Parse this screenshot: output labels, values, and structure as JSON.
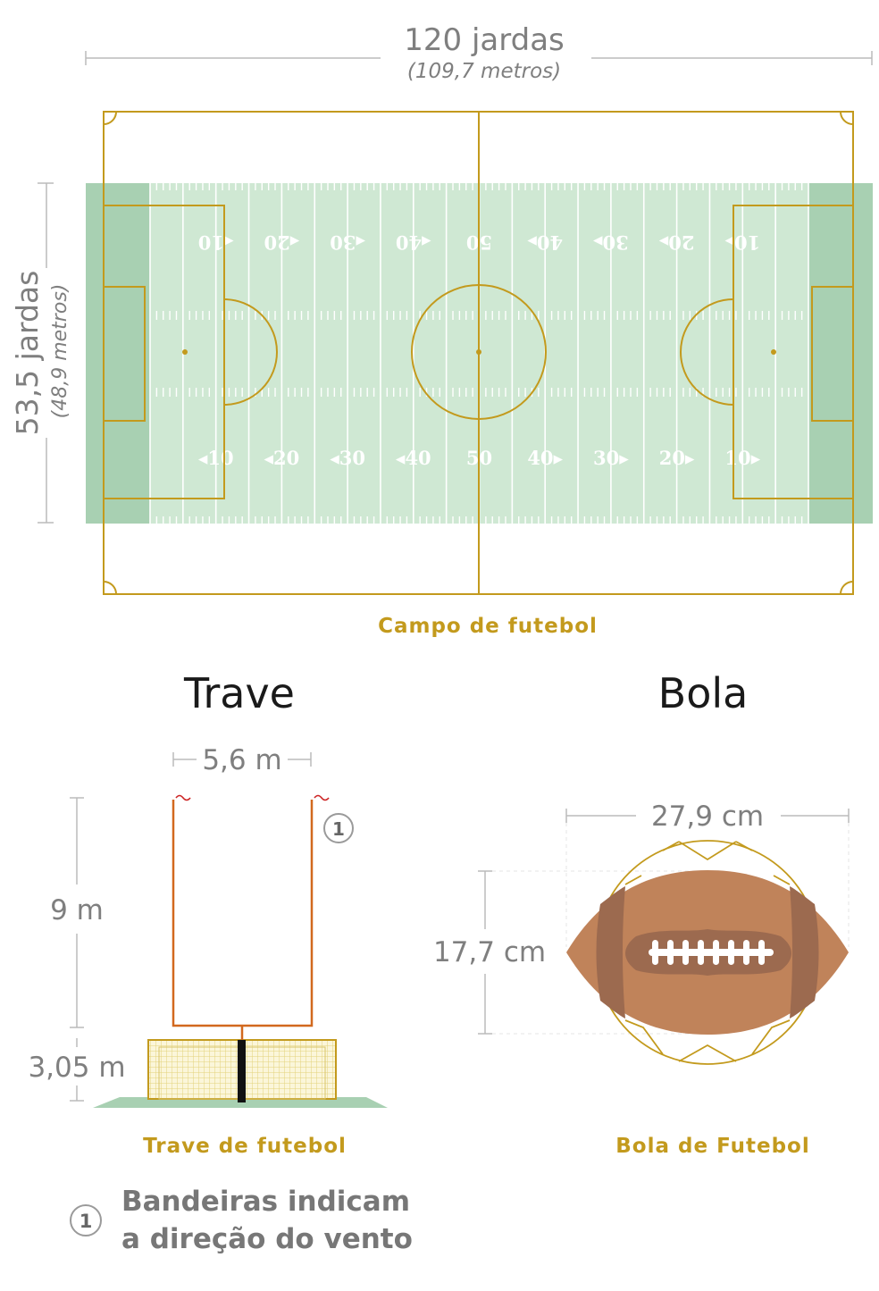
{
  "field": {
    "length_label": "120 jardas",
    "length_metric": "(109,7 metros)",
    "width_label": "53,5 jardas",
    "width_metric": "(48,9 metros)",
    "caption": "Campo de futebol",
    "yard_numbers_bottom": [
      "◂10",
      "◂20",
      "◂30",
      "◂40",
      "50",
      "40▸",
      "30▸",
      "20▸",
      "10▸"
    ],
    "yard_numbers_top": [
      "◂10",
      "◂20",
      "◂30",
      "◂40",
      "50",
      "40▸",
      "30▸",
      "20▸",
      "10▸"
    ]
  },
  "trave": {
    "title": "Trave",
    "width_label": "5,6 m",
    "height_label": "9 m",
    "base_label": "3,05 m",
    "caption": "Trave de futebol",
    "marker": "1"
  },
  "bola": {
    "title": "Bola",
    "length_label": "27,9 cm",
    "height_label": "17,7 cm",
    "caption": "Bola de Futebol"
  },
  "note": {
    "marker": "1",
    "line1": "Bandeiras indicam",
    "line2": "a direção do vento"
  },
  "colors": {
    "grass": "#cfe8d3",
    "endzone": "#a8d0b2",
    "gold_line": "#c39a1d",
    "goalpost": "#d2691e",
    "ball_brown": "#c0835a",
    "ball_dark": "#9c6a4f"
  }
}
